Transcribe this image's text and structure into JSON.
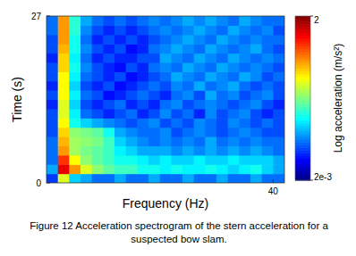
{
  "chart_data": {
    "type": "heatmap",
    "xlabel": "Frequency (Hz)",
    "ylabel": "Time (s)",
    "caption": "Figure 12  Acceleration spectrogram of the stern acceleration for a suspected bow slam.",
    "xlim": [
      0,
      42
    ],
    "ylim": [
      0,
      27
    ],
    "xticks": [
      40
    ],
    "yticks": [
      0,
      27
    ],
    "x_bins": [
      0,
      2,
      4,
      6,
      8,
      10,
      12,
      14,
      16,
      18,
      20,
      22,
      24,
      26,
      28,
      30,
      32,
      34,
      36,
      38,
      40,
      42
    ],
    "y_bins": [
      0,
      1.5,
      3,
      4.5,
      6,
      7.5,
      9,
      10.5,
      12,
      13.5,
      15,
      16.5,
      18,
      19.5,
      21,
      22.5,
      24,
      25.5,
      27
    ],
    "values": [
      [
        0.007,
        0.12,
        0.02,
        0.015,
        0.01,
        0.01,
        0.015,
        0.01,
        0.01,
        0.015,
        0.01,
        0.01,
        0.015,
        0.01,
        0.01,
        0.015,
        0.01,
        0.01,
        0.015,
        0.01,
        0.01
      ],
      [
        0.015,
        1.0,
        0.3,
        0.12,
        0.07,
        0.05,
        0.04,
        0.04,
        0.03,
        0.03,
        0.025,
        0.03,
        0.025,
        0.025,
        0.03,
        0.025,
        0.02,
        0.025,
        0.03,
        0.02,
        0.015
      ],
      [
        0.01,
        0.6,
        0.15,
        0.07,
        0.05,
        0.04,
        0.03,
        0.03,
        0.025,
        0.02,
        0.025,
        0.02,
        0.02,
        0.025,
        0.02,
        0.02,
        0.025,
        0.02,
        0.02,
        0.02,
        0.015
      ],
      [
        0.01,
        0.3,
        0.08,
        0.06,
        0.05,
        0.04,
        0.025,
        0.02,
        0.015,
        0.015,
        0.015,
        0.012,
        0.015,
        0.012,
        0.015,
        0.012,
        0.015,
        0.012,
        0.015,
        0.012,
        0.01
      ],
      [
        0.01,
        0.25,
        0.08,
        0.07,
        0.06,
        0.04,
        0.02,
        0.015,
        0.012,
        0.01,
        0.012,
        0.01,
        0.012,
        0.01,
        0.015,
        0.01,
        0.012,
        0.01,
        0.012,
        0.01,
        0.01
      ],
      [
        0.008,
        0.2,
        0.07,
        0.06,
        0.05,
        0.03,
        0.015,
        0.012,
        0.01,
        0.01,
        0.012,
        0.008,
        0.01,
        0.012,
        0.01,
        0.008,
        0.01,
        0.012,
        0.01,
        0.008,
        0.008
      ],
      [
        0.008,
        0.15,
        0.03,
        0.02,
        0.015,
        0.012,
        0.01,
        0.008,
        0.01,
        0.012,
        0.008,
        0.01,
        0.008,
        0.012,
        0.01,
        0.008,
        0.012,
        0.01,
        0.008,
        0.01,
        0.008
      ],
      [
        0.008,
        0.12,
        0.025,
        0.01,
        0.008,
        0.006,
        0.008,
        0.01,
        0.006,
        0.008,
        0.012,
        0.008,
        0.01,
        0.006,
        0.012,
        0.008,
        0.01,
        0.012,
        0.008,
        0.006,
        0.008
      ],
      [
        0.006,
        0.12,
        0.02,
        0.008,
        0.006,
        0.008,
        0.01,
        0.006,
        0.008,
        0.006,
        0.01,
        0.012,
        0.008,
        0.01,
        0.012,
        0.01,
        0.008,
        0.01,
        0.012,
        0.008,
        0.006
      ],
      [
        0.008,
        0.15,
        0.025,
        0.01,
        0.008,
        0.005,
        0.006,
        0.008,
        0.01,
        0.008,
        0.006,
        0.01,
        0.012,
        0.008,
        0.015,
        0.01,
        0.012,
        0.008,
        0.01,
        0.012,
        0.008
      ],
      [
        0.006,
        0.15,
        0.02,
        0.008,
        0.006,
        0.008,
        0.005,
        0.006,
        0.008,
        0.01,
        0.008,
        0.012,
        0.01,
        0.015,
        0.01,
        0.012,
        0.015,
        0.01,
        0.008,
        0.01,
        0.008
      ],
      [
        0.008,
        0.15,
        0.025,
        0.01,
        0.008,
        0.006,
        0.008,
        0.005,
        0.006,
        0.008,
        0.01,
        0.015,
        0.012,
        0.01,
        0.015,
        0.012,
        0.01,
        0.015,
        0.012,
        0.008,
        0.01
      ],
      [
        0.008,
        0.2,
        0.03,
        0.012,
        0.008,
        0.006,
        0.005,
        0.008,
        0.006,
        0.01,
        0.012,
        0.01,
        0.015,
        0.012,
        0.01,
        0.015,
        0.012,
        0.01,
        0.012,
        0.01,
        0.008
      ],
      [
        0.006,
        0.2,
        0.025,
        0.01,
        0.006,
        0.008,
        0.006,
        0.006,
        0.008,
        0.008,
        0.015,
        0.012,
        0.01,
        0.015,
        0.012,
        0.01,
        0.015,
        0.012,
        0.01,
        0.012,
        0.01
      ],
      [
        0.008,
        0.25,
        0.03,
        0.012,
        0.008,
        0.006,
        0.008,
        0.005,
        0.006,
        0.01,
        0.012,
        0.015,
        0.012,
        0.01,
        0.015,
        0.012,
        0.01,
        0.012,
        0.015,
        0.01,
        0.008
      ],
      [
        0.008,
        0.3,
        0.03,
        0.01,
        0.006,
        0.008,
        0.006,
        0.008,
        0.006,
        0.008,
        0.01,
        0.012,
        0.015,
        0.012,
        0.01,
        0.015,
        0.012,
        0.01,
        0.012,
        0.01,
        0.01
      ],
      [
        0.01,
        0.3,
        0.035,
        0.012,
        0.008,
        0.006,
        0.008,
        0.006,
        0.008,
        0.01,
        0.012,
        0.01,
        0.012,
        0.015,
        0.012,
        0.01,
        0.015,
        0.012,
        0.01,
        0.012,
        0.008
      ],
      [
        0.01,
        0.3,
        0.035,
        0.015,
        0.01,
        0.008,
        0.01,
        0.008,
        0.01,
        0.012,
        0.01,
        0.012,
        0.015,
        0.012,
        0.015,
        0.012,
        0.01,
        0.015,
        0.012,
        0.01,
        0.01
      ]
    ],
    "colorbar": {
      "title": "Log acceleration (m/s²)",
      "range": [
        0.002,
        2
      ],
      "log": true,
      "ticks": [
        2,
        {
          "value": 0.002,
          "label": "2e-3"
        }
      ]
    }
  }
}
